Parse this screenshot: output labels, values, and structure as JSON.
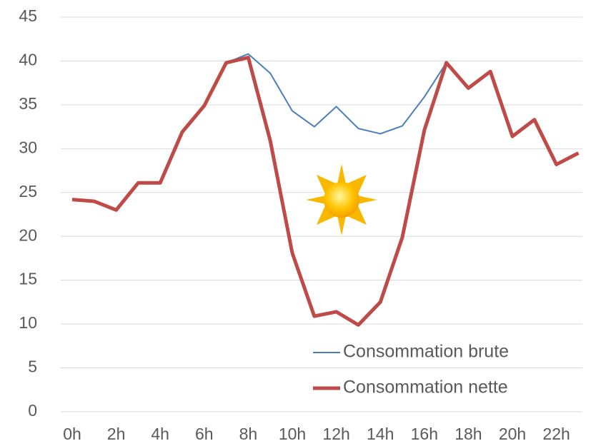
{
  "chart_data": {
    "type": "line",
    "categories": [
      "0h",
      null,
      "2h",
      null,
      "4h",
      null,
      "6h",
      null,
      "8h",
      null,
      "10h",
      null,
      "12h",
      null,
      "14h",
      null,
      "16h",
      null,
      "18h",
      null,
      "20h",
      null,
      "22h",
      null
    ],
    "series": [
      {
        "name": "Consommation brute",
        "color": "#4a7ebb",
        "width": 2,
        "values": [
          24.2,
          24.0,
          23.0,
          26.1,
          26.1,
          31.9,
          34.9,
          39.8,
          40.8,
          38.6,
          34.3,
          32.5,
          34.8,
          32.3,
          31.7,
          32.6,
          35.9,
          39.8,
          36.9,
          38.8,
          31.4,
          33.3,
          28.2,
          29.5
        ]
      },
      {
        "name": "Consommation nette",
        "color": "#be4b48",
        "width": 5,
        "values": [
          24.2,
          24.0,
          23.0,
          26.1,
          26.1,
          31.9,
          34.9,
          39.8,
          40.4,
          30.9,
          18.1,
          10.9,
          11.4,
          9.9,
          12.5,
          19.9,
          32.1,
          39.8,
          36.9,
          38.8,
          31.4,
          33.3,
          28.2,
          29.5
        ]
      }
    ],
    "ylim": [
      0,
      45
    ],
    "yticks": [
      0,
      5,
      10,
      15,
      20,
      25,
      30,
      35,
      40,
      45
    ],
    "grid": true,
    "legend": "bottom-right"
  }
}
